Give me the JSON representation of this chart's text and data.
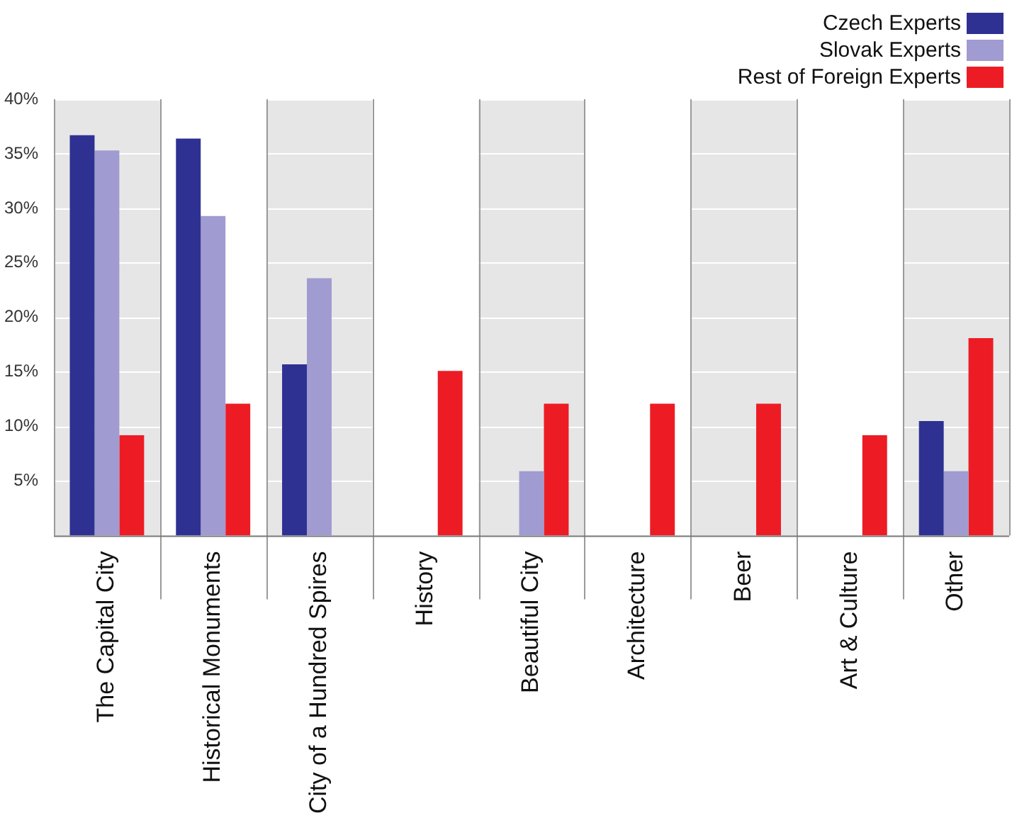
{
  "chart_data": {
    "type": "bar",
    "categories": [
      "The Capital City",
      "Historical Monuments",
      "City of a Hundred Spires",
      "History",
      "Beautiful City",
      "Architecture",
      "Beer",
      "Art & Culture",
      "Other"
    ],
    "series": [
      {
        "name": "Czech Experts",
        "color": "#2e3192",
        "values": [
          36.7,
          36.4,
          15.7,
          null,
          null,
          null,
          null,
          null,
          10.5
        ]
      },
      {
        "name": "Slovak Experts",
        "color": "#a09bd0",
        "values": [
          35.3,
          29.3,
          23.6,
          null,
          5.9,
          null,
          null,
          null,
          5.9
        ]
      },
      {
        "name": "Rest of Foreign Experts",
        "color": "#ed1c24",
        "values": [
          9.2,
          12.1,
          null,
          15.1,
          12.1,
          12.1,
          12.1,
          9.2,
          18.1
        ]
      }
    ],
    "ylim": [
      0,
      40
    ],
    "yticks": [
      {
        "value": 5,
        "label": "5%"
      },
      {
        "value": 10,
        "label": "10%"
      },
      {
        "value": 15,
        "label": "15%"
      },
      {
        "value": 20,
        "label": "20%"
      },
      {
        "value": 25,
        "label": "25%"
      },
      {
        "value": 30,
        "label": "30%"
      },
      {
        "value": 35,
        "label": "35%"
      },
      {
        "value": 40,
        "label": "40%"
      }
    ],
    "grid": true,
    "legend": "top right"
  }
}
